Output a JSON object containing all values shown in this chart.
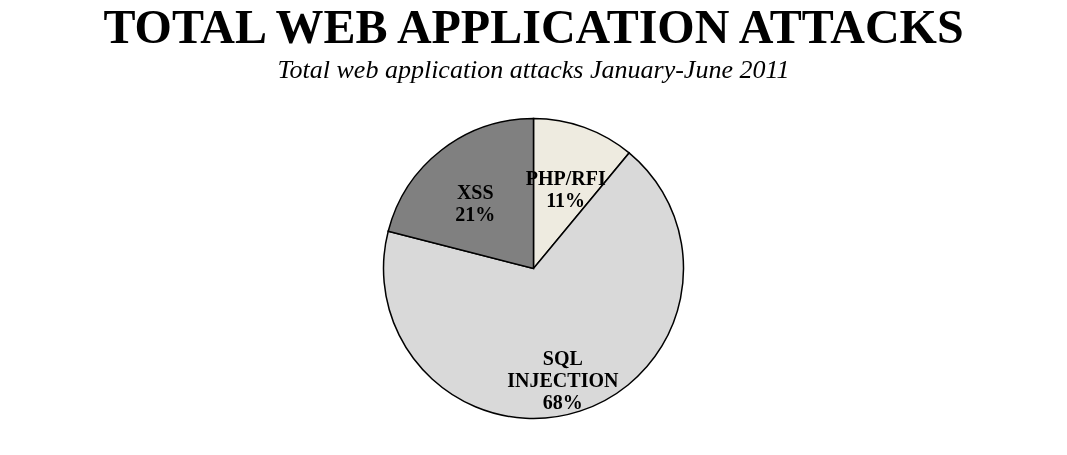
{
  "chart_data": {
    "type": "pie",
    "title": "Total web application attacks January-June 2011",
    "subtitle": "TOTAL WEB APPLICATION ATTACKS",
    "categories": [
      "PHP/RFI",
      "SQL INJECTION",
      "XSS"
    ],
    "values": [
      11,
      68,
      21
    ],
    "colors": [
      "#eeebe0",
      "#d9d9d9",
      "#808080"
    ],
    "value_labels": [
      "11%",
      "68%",
      "21%"
    ],
    "legend": false
  }
}
